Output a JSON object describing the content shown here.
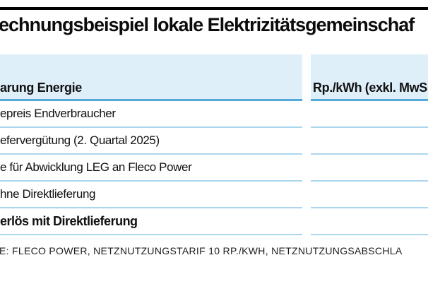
{
  "chart_data": {
    "type": "table",
    "title": "echnungsbeispiel lokale Elektrizitätsgemeinschaf",
    "columns": [
      "arung Energie",
      "Rp./kWh (exkl. MwS"
    ],
    "rows": [
      [
        "epreis Endverbraucher",
        ""
      ],
      [
        "efervergütung (2. Quartal 2025)",
        ""
      ],
      [
        "e für Abwicklung LEG an Fleco Power",
        ""
      ],
      [
        "hne Direktlieferung",
        ""
      ],
      [
        "erlös mit Direktlieferung",
        ""
      ]
    ],
    "bold_row_index": 4,
    "source_note": "E: FLECO POWER, NETZNUTZUNGSTARIF 10 RP./KWH, NETZNUTZUNGSABSCHLA"
  },
  "colors": {
    "bar": "#000000",
    "band": "#dfeffa",
    "rule-strong": "#55a9d9",
    "rule-thin": "#abd7ee"
  }
}
